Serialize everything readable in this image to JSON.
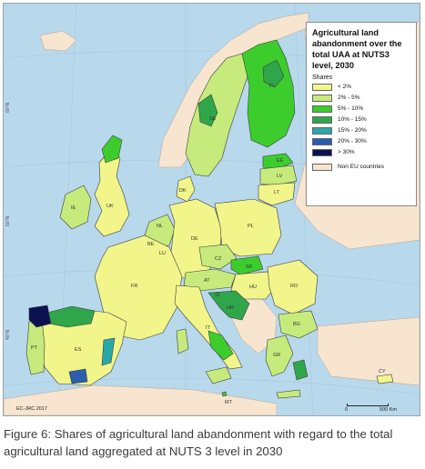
{
  "legend": {
    "title": "Agricultural land abandonment over the total UAA at NUTS3 level, 2030",
    "subtitle": "Shares",
    "classes": [
      {
        "label": "< 2%",
        "color": "#f2f58a"
      },
      {
        "label": "2% - 5%",
        "color": "#c6eb7c"
      },
      {
        "label": "5% - 10%",
        "color": "#3ccd2d"
      },
      {
        "label": "10% - 15%",
        "color": "#2fa64a"
      },
      {
        "label": "15% - 20%",
        "color": "#2aa8a8"
      },
      {
        "label": "20% - 30%",
        "color": "#2a5db0"
      },
      {
        "label": "> 30%",
        "color": "#0b1250"
      }
    ],
    "non_eu": {
      "label": "Non EU countries",
      "color": "#f7e5cf"
    }
  },
  "colors": {
    "sea": "#b8d8ec",
    "border": "#3f3f3f"
  },
  "country_labels": [
    "FI",
    "SE",
    "EE",
    "LV",
    "LT",
    "IE",
    "UK",
    "DK",
    "NL",
    "BE",
    "LU",
    "DE",
    "PL",
    "CZ",
    "SK",
    "AT",
    "HU",
    "SI",
    "HR",
    "RO",
    "BG",
    "FR",
    "IT",
    "PT",
    "ES",
    "GR",
    "MT",
    "CY"
  ],
  "graticule_labels": [
    "60°N",
    "50°N",
    "40°N"
  ],
  "credit": "EC-JRC 2017",
  "scale": {
    "zero": "0",
    "distance": "500 Km"
  },
  "caption": "Figure 6: Shares of agricultural land abandonment with regard to the total agricultural land aggregated at NUTS 3 level in 2030"
}
